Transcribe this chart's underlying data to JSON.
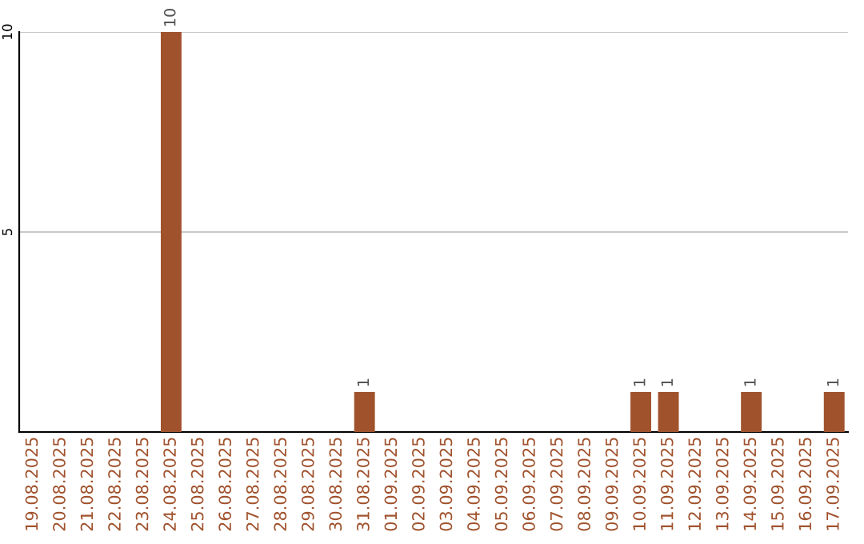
{
  "chart_data": {
    "type": "bar",
    "categories": [
      "19.08.2025",
      "20.08.2025",
      "21.08.2025",
      "22.08.2025",
      "23.08.2025",
      "24.08.2025",
      "25.08.2025",
      "26.08.2025",
      "27.08.2025",
      "28.08.2025",
      "29.08.2025",
      "30.08.2025",
      "31.08.2025",
      "01.09.2025",
      "02.09.2025",
      "03.09.2025",
      "04.09.2025",
      "05.09.2025",
      "06.09.2025",
      "07.09.2025",
      "08.09.2025",
      "09.09.2025",
      "10.09.2025",
      "11.09.2025",
      "12.09.2025",
      "13.09.2025",
      "14.09.2025",
      "15.09.2025",
      "16.09.2025",
      "17.09.2025"
    ],
    "values": [
      0,
      0,
      0,
      0,
      0,
      10,
      0,
      0,
      0,
      0,
      0,
      0,
      1,
      0,
      0,
      0,
      0,
      0,
      0,
      0,
      0,
      0,
      1,
      1,
      0,
      0,
      1,
      0,
      0,
      1
    ],
    "value_labels": [
      null,
      null,
      null,
      null,
      null,
      "10",
      null,
      null,
      null,
      null,
      null,
      null,
      "1",
      null,
      null,
      null,
      null,
      null,
      null,
      null,
      null,
      null,
      "1",
      "1",
      null,
      null,
      "1",
      null,
      null,
      "1"
    ],
    "color": "#a0522d",
    "ylim": [
      0,
      10
    ],
    "yticks": [
      5,
      10
    ],
    "grid": "y"
  }
}
